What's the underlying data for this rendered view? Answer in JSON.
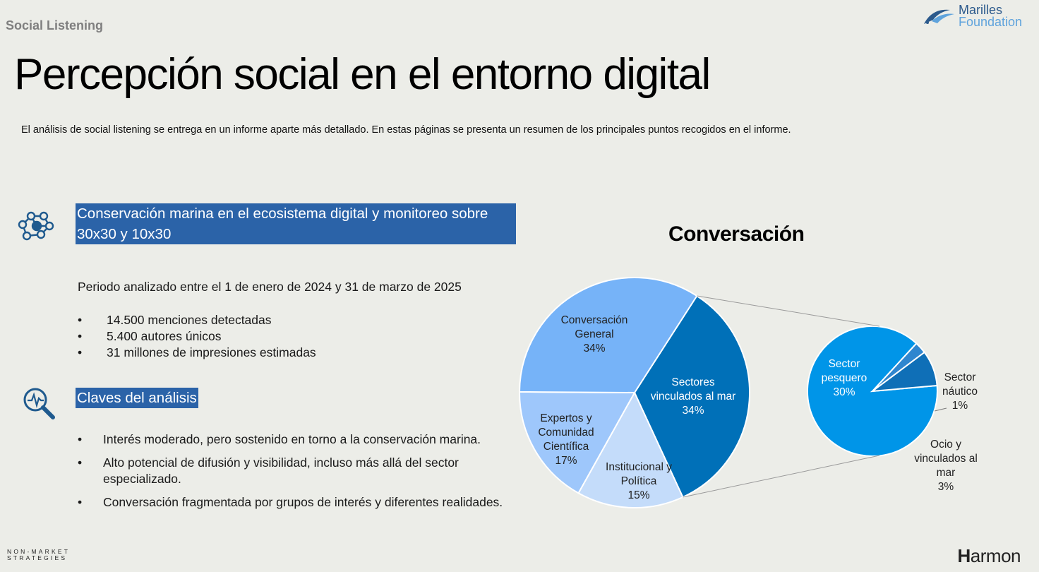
{
  "header": {
    "section_label": "Social Listening",
    "logo_line1": "Marilles",
    "logo_line2": "Foundation"
  },
  "title": "Percepción social en el entorno digital",
  "intro": "El análisis de social listening se entrega en un informe aparte más detallado. En estas páginas se presenta un resumen de los principales puntos recogidos en el informe.",
  "section1": {
    "heading": "Conservación marina en el ecosistema digital y monitoreo sobre 30x30 y 10x30",
    "icon": "network-people-icon",
    "period": "Periodo analizado entre el 1 de enero de 2024 y 31 de marzo de 2025",
    "stats": [
      "14.500 menciones detectadas",
      "5.400 autores únicos",
      "31 millones de impresiones estimadas"
    ]
  },
  "section2": {
    "heading": "Claves del análisis",
    "icon": "magnifier-analysis-icon",
    "bullets": [
      "Interés moderado, pero sostenido en torno a la conservación marina.",
      "Alto potencial de difusión y visibilidad, incluso más allá del sector especializado.",
      "Conversación fragmentada por grupos de interés y diferentes realidades."
    ]
  },
  "bullet_char": "•",
  "chart_data": {
    "type": "pie",
    "subtype": "pie-of-pie",
    "title": "Conversación",
    "main": {
      "slices": [
        {
          "label": "Sectores vinculados al mar",
          "value": 34,
          "display": "34%",
          "color": "#0070b8"
        },
        {
          "label": "Institucional y Política",
          "value": 15,
          "display": "15%",
          "color": "#c4dcfa"
        },
        {
          "label": "Expertos y Comunidad Científica",
          "value": 17,
          "display": "17%",
          "color": "#9ec7fb"
        },
        {
          "label": "Conversación General",
          "value": 34,
          "display": "34%",
          "color": "#76b3f8"
        }
      ]
    },
    "detail": {
      "parent": "Sectores vinculados al mar",
      "slices": [
        {
          "label": "Sector pesquero",
          "value": 30,
          "display": "30%",
          "color": "#0095e8"
        },
        {
          "label": "Sector náutico",
          "value": 1,
          "display": "1%",
          "color": "#2f86cf"
        },
        {
          "label": "Ocio y vinculados al mar",
          "value": 3,
          "display": "3%",
          "color": "#0f6fb7"
        }
      ]
    }
  },
  "footer": {
    "left_line1": "NON-MARKET",
    "left_line2": "STRATEGIES",
    "brand_bold": "H",
    "brand_rest": "armon"
  }
}
